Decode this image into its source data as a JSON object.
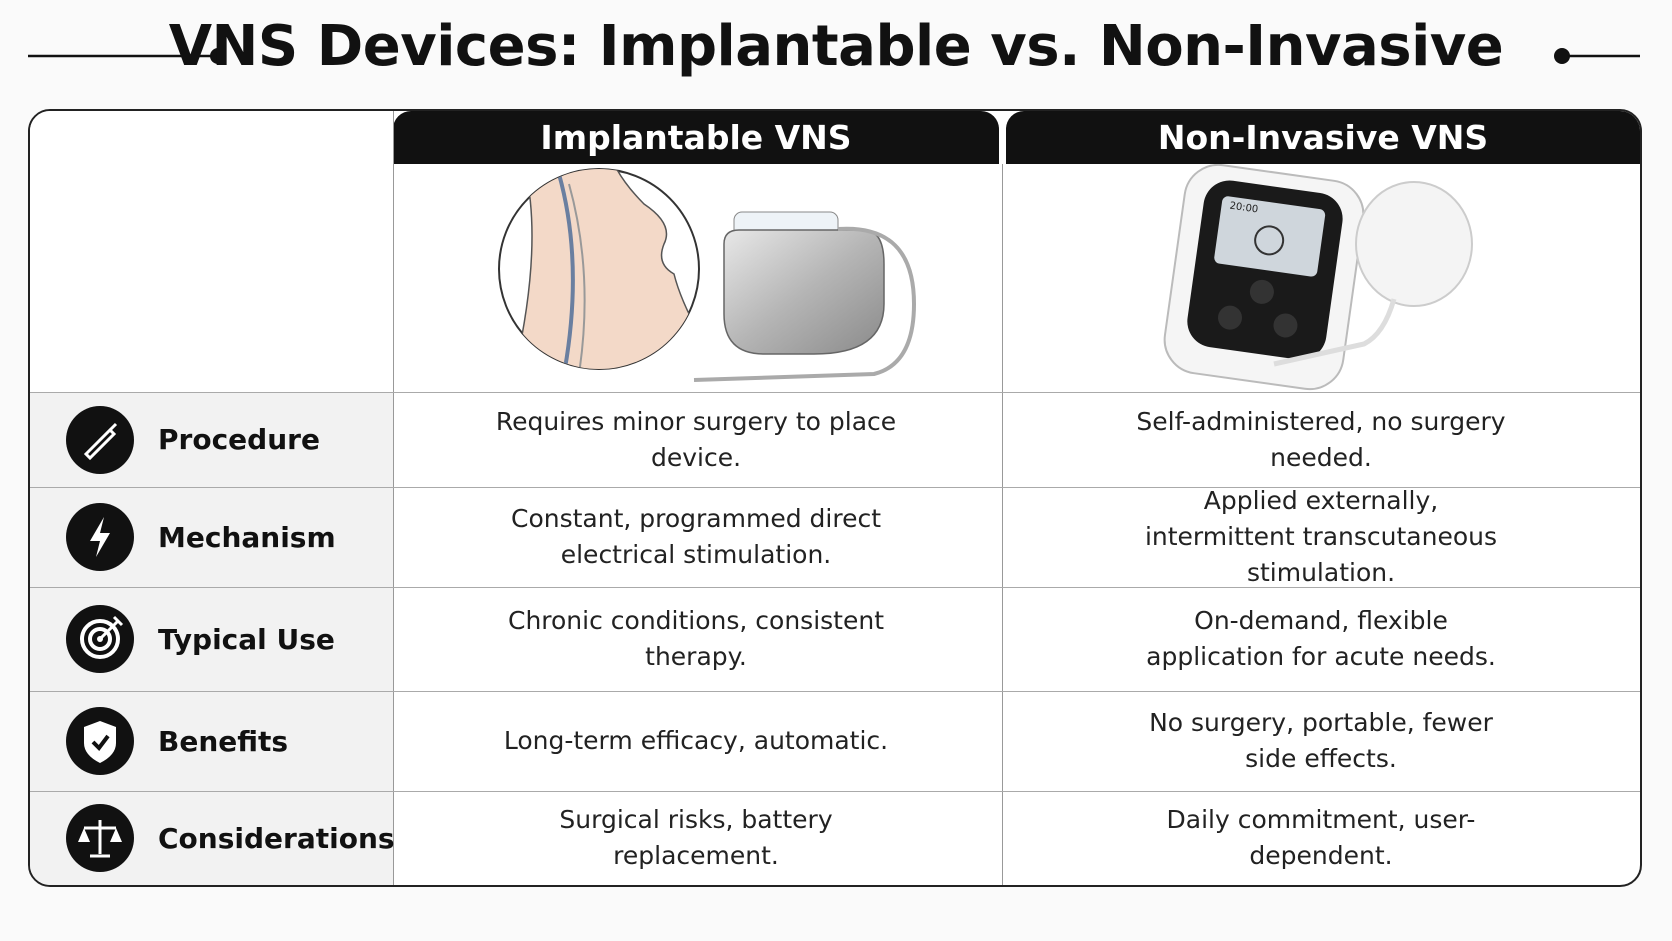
{
  "header": {
    "title": "VNS Devices: Implantable vs. Non-Invasive"
  },
  "table": {
    "columns": [
      "Implantable VNS",
      "Non-Invasive VNS"
    ],
    "rows": [
      [
        "Procedure",
        "Requires minor surgery to place device.",
        "Self-administered, no surgery needed."
      ],
      [
        "Mechanism",
        "Constant, programmed direct electrical stimulation.",
        "Applied externally, intermittent transcutaneous stimulation."
      ],
      [
        "Typical Use",
        "Chronic conditions, consistent therapy.",
        "On-demand, flexible application for acute needs."
      ],
      [
        "Benefits",
        "Long-term efficacy, automatic.",
        "No surgery, portable, fewer side effects."
      ],
      [
        "Considerations",
        "Surgical risks, battery replacement.",
        "Daily commitment, user-dependent."
      ]
    ]
  },
  "device_screen": {
    "time": "20:00"
  }
}
